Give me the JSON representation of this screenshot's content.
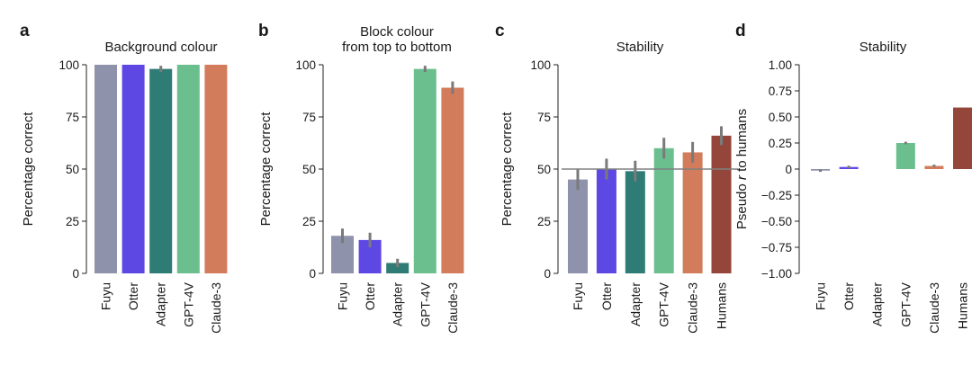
{
  "colors": {
    "Fuyu": "#8e92ab",
    "Otter": "#5e48e3",
    "Adapter": "#2f7b76",
    "GPT-4V": "#6bbf8f",
    "Claude-3": "#d37c5b",
    "Humans": "#95463b",
    "errorbar": "#7a7a7a",
    "refline": "#808080"
  },
  "chart_data": [
    {
      "panel": "a",
      "type": "bar",
      "title": "Background colour",
      "ylabel": "Percentage correct",
      "ylim": [
        0,
        100
      ],
      "yticks": [
        0,
        25,
        50,
        75,
        100
      ],
      "ytick_labels": [
        "0",
        "25",
        "50",
        "75",
        "100"
      ],
      "categories": [
        "Fuyu",
        "Otter",
        "Adapter",
        "GPT-4V",
        "Claude-3"
      ],
      "values": [
        100,
        100,
        98,
        100,
        100
      ],
      "errors": [
        0,
        0,
        1.5,
        0,
        0
      ]
    },
    {
      "panel": "b",
      "type": "bar",
      "title": "Block colour\nfrom top to bottom",
      "ylabel": "Percentage correct",
      "ylim": [
        0,
        100
      ],
      "yticks": [
        0,
        25,
        50,
        75,
        100
      ],
      "ytick_labels": [
        "0",
        "25",
        "50",
        "75",
        "100"
      ],
      "categories": [
        "Fuyu",
        "Otter",
        "Adapter",
        "GPT-4V",
        "Claude-3"
      ],
      "values": [
        18,
        16,
        5,
        98,
        89
      ],
      "errors": [
        3.5,
        3.5,
        2,
        1.5,
        3
      ]
    },
    {
      "panel": "c",
      "type": "bar",
      "title": "Stability",
      "ylabel": "Percentage correct",
      "ylim": [
        0,
        100
      ],
      "yticks": [
        0,
        25,
        50,
        75,
        100
      ],
      "ytick_labels": [
        "0",
        "25",
        "50",
        "75",
        "100"
      ],
      "reference_line": 50,
      "categories": [
        "Fuyu",
        "Otter",
        "Adapter",
        "GPT-4V",
        "Claude-3",
        "Humans"
      ],
      "values": [
        45,
        50,
        49,
        60,
        58,
        66
      ],
      "errors": [
        5,
        5,
        5,
        5,
        5,
        4.5
      ]
    },
    {
      "panel": "d",
      "type": "bar",
      "title": "Stability",
      "ylabel_parts": [
        "Pseudo ",
        "r",
        " to humans"
      ],
      "ylim": [
        -1,
        1
      ],
      "yticks": [
        -1,
        -0.75,
        -0.5,
        -0.25,
        0,
        0.25,
        0.5,
        0.75,
        1
      ],
      "ytick_labels": [
        "−1.00",
        "−0.75",
        "−0.50",
        "−0.25",
        "0",
        "0.25",
        "0.50",
        "0.75",
        "1.00"
      ],
      "categories": [
        "Fuyu",
        "Otter",
        "Adapter",
        "GPT-4V",
        "Claude-3",
        "Humans"
      ],
      "values": [
        -0.015,
        0.02,
        0,
        0.25,
        0.03,
        0.59
      ],
      "errors": [
        0.012,
        0.012,
        0,
        0.012,
        0.012,
        0
      ]
    }
  ]
}
